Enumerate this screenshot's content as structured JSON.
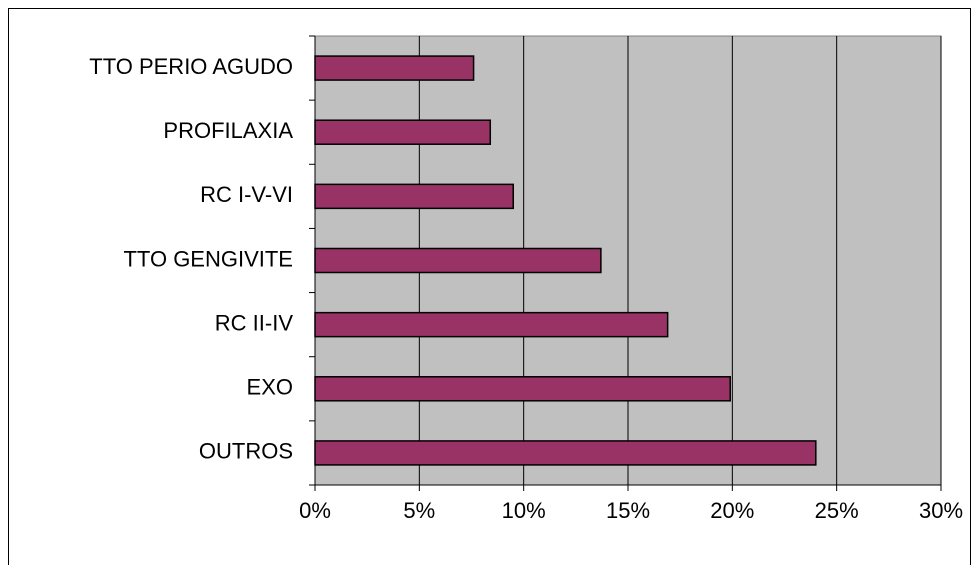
{
  "chart_data": {
    "type": "bar",
    "orientation": "horizontal",
    "categories": [
      "TTO PERIO AGUDO",
      "PROFILAXIA",
      "RC I-V-VI",
      "TTO GENGIVITE",
      "RC II-IV",
      "EXO",
      "OUTROS"
    ],
    "values": [
      7.6,
      8.4,
      9.5,
      13.7,
      16.9,
      19.9,
      24.0
    ],
    "color": "#993366",
    "xlim": [
      0,
      30
    ],
    "xticks": [
      {
        "value": 0,
        "label": "0%"
      },
      {
        "value": 5,
        "label": "5%"
      },
      {
        "value": 10,
        "label": "10%"
      },
      {
        "value": 15,
        "label": "15%"
      },
      {
        "value": 20,
        "label": "20%"
      },
      {
        "value": 25,
        "label": "25%"
      },
      {
        "value": 30,
        "label": "30%"
      }
    ],
    "grid": true
  }
}
